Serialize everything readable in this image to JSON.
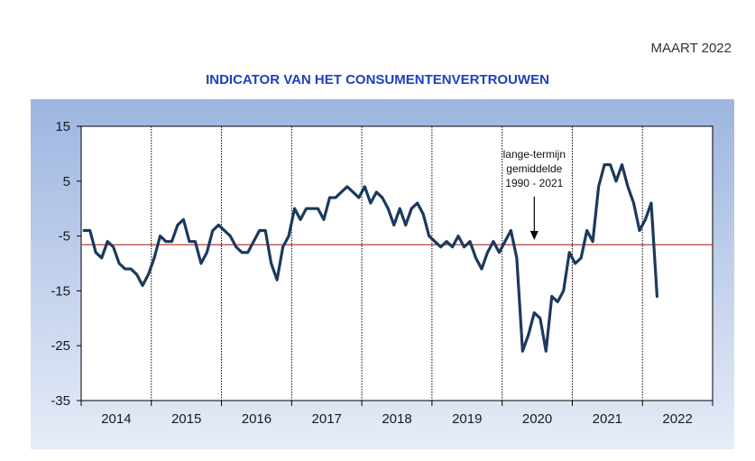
{
  "header": {
    "date": "MAART 2022"
  },
  "colors": {
    "title": "#1f3fbf",
    "series": "#1b3a5c",
    "average_line": "#c0504d",
    "frame_top": "#9db5e0",
    "frame_bottom": "#e6ecf8"
  },
  "chart_data": {
    "type": "line",
    "title": "INDICATOR VAN HET CONSUMENTENVERTROUWEN",
    "xlabel": "",
    "ylabel": "",
    "ylim": [
      -35,
      15
    ],
    "yticks": [
      15,
      5,
      -5,
      -15,
      -25,
      -35
    ],
    "years": [
      "2014",
      "2015",
      "2016",
      "2017",
      "2018",
      "2019",
      "2020",
      "2021",
      "2022"
    ],
    "start": "2014-01",
    "series": [
      {
        "name": "Indicator van het consumentenvertrouwen",
        "values": [
          -4,
          -4,
          -8,
          -9,
          -6,
          -7,
          -10,
          -11,
          -11,
          -12,
          -14,
          -12,
          -9,
          -5,
          -6,
          -6,
          -3,
          -2,
          -6,
          -6,
          -10,
          -8,
          -4,
          -3,
          -4,
          -5,
          -7,
          -8,
          -8,
          -6,
          -4,
          -4,
          -10,
          -13,
          -7,
          -5,
          0,
          -2,
          0,
          0,
          0,
          -2,
          2,
          2,
          3,
          4,
          3,
          2,
          4,
          1,
          3,
          2,
          0,
          -3,
          0,
          -3,
          0,
          1,
          -1,
          -5,
          -6,
          -7,
          -6,
          -7,
          -5,
          -7,
          -6,
          -9,
          -11,
          -8,
          -6,
          -8,
          -6,
          -4,
          -9,
          -26,
          -23,
          -19,
          -20,
          -26,
          -16,
          -17,
          -15,
          -8,
          -10,
          -9,
          -4,
          -6,
          4,
          8,
          8,
          5,
          8,
          4,
          1,
          -4,
          -2,
          1,
          -16
        ]
      }
    ],
    "reference_line": {
      "name": "lange-termijn gemiddelde 1990 - 2021",
      "value": -6.6
    },
    "annotation": {
      "lines": [
        "lange-termijn",
        "gemiddelde",
        "1990 - 2021"
      ]
    }
  }
}
